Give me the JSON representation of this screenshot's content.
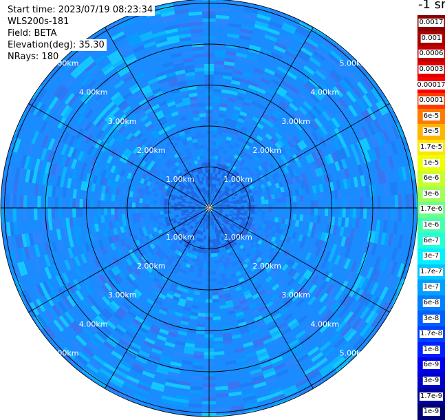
{
  "info": {
    "start_time": "Start time: 2023/07/19 08:23:34",
    "instrument": "WLS200s-181",
    "field": "Field: BETA",
    "elevation": "Elevation(deg): 35.30",
    "nrays": "NRays: 180"
  },
  "colorbar": {
    "unit": "-1 sr",
    "labels": [
      "0.0017",
      "0.001",
      "0.0006",
      "0.0003",
      "0.00017",
      "0.0001",
      "6e-5",
      "3e-5",
      "1.7e-5",
      "1e-5",
      "6e-6",
      "3e-6",
      "1.7e-6",
      "1e-6",
      "6e-7",
      "3e-7",
      "1.7e-7",
      "1e-7",
      "6e-8",
      "3e-8",
      "1.7e-8",
      "1e-8",
      "6e-9",
      "3e-9",
      "1.7e-9",
      "1e-9"
    ],
    "colors": [
      "#8b0000",
      "#a80000",
      "#c40000",
      "#e00000",
      "#ff0000",
      "#ff3a00",
      "#ff7a00",
      "#ffb400",
      "#ffe600",
      "#f0ff00",
      "#c8ff28",
      "#a0ff58",
      "#70ff88",
      "#48ffb0",
      "#20ffd8",
      "#00f0ff",
      "#00c8ff",
      "#00a0ff",
      "#0080ff",
      "#0060ff",
      "#0040ff",
      "#0020ff",
      "#0000f0",
      "#0000c8",
      "#00009a",
      "#000070"
    ]
  },
  "ppi": {
    "range_labels": [
      "1.00km",
      "2.00km",
      "3.00km",
      "4.00km",
      "5.00km"
    ],
    "background_color": "#1a8cff",
    "near_field_color": "#1e6be6"
  }
}
